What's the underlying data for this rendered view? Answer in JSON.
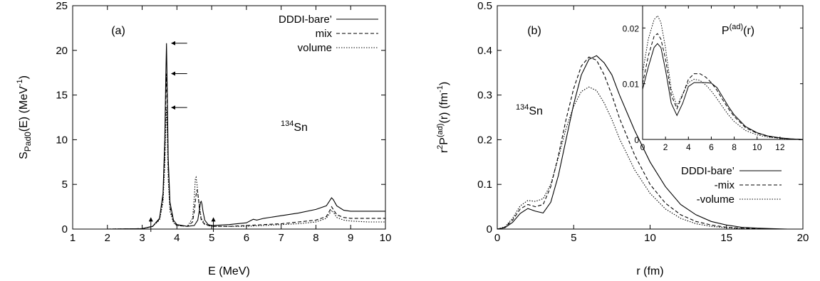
{
  "chart_data": [
    {
      "type": "line",
      "panel_label": "(a)",
      "xlabel": "E (MeV)",
      "ylabel_main": "S",
      "ylabel_sub": "Pad0",
      "ylabel_rest": "(E) (MeV",
      "ylabel_sup": "-1",
      "ylabel_close": ")",
      "xlim": [
        1,
        10
      ],
      "ylim": [
        0,
        25
      ],
      "xticks": [
        1,
        2,
        3,
        4,
        5,
        6,
        7,
        8,
        9,
        10
      ],
      "yticks": [
        0,
        5,
        10,
        15,
        20,
        25
      ],
      "nucleus_sup": "134",
      "nucleus_text": "Sn",
      "legend_position": "top-right",
      "series": [
        {
          "name": "DDDI-bare’",
          "style": "solid",
          "x": [
            1.0,
            2.0,
            3.0,
            3.3,
            3.5,
            3.6,
            3.65,
            3.68,
            3.7,
            3.72,
            3.75,
            3.8,
            3.9,
            4.0,
            4.3,
            4.5,
            4.6,
            4.65,
            4.68,
            4.7,
            4.72,
            4.75,
            4.8,
            4.9,
            5.0,
            5.5,
            6.0,
            6.15,
            6.2,
            6.3,
            6.5,
            7.0,
            7.5,
            8.0,
            8.3,
            8.4,
            8.45,
            8.5,
            8.6,
            8.8,
            9.0,
            9.5,
            10.0
          ],
          "y": [
            0.0,
            0.0,
            0.05,
            0.3,
            1.2,
            4.0,
            10.0,
            17.0,
            20.8,
            16.0,
            8.0,
            3.0,
            1.0,
            0.5,
            0.3,
            0.4,
            1.0,
            2.2,
            3.0,
            3.1,
            2.8,
            2.0,
            1.0,
            0.5,
            0.4,
            0.5,
            0.7,
            1.0,
            1.1,
            1.0,
            1.2,
            1.5,
            1.8,
            2.2,
            2.6,
            3.2,
            3.5,
            3.3,
            2.6,
            2.1,
            2.0,
            2.0,
            2.0
          ]
        },
        {
          "name": "mix",
          "style": "dashed",
          "x": [
            1.0,
            2.0,
            3.0,
            3.3,
            3.5,
            3.6,
            3.65,
            3.68,
            3.7,
            3.72,
            3.75,
            3.8,
            3.9,
            4.0,
            4.3,
            4.45,
            4.5,
            4.55,
            4.58,
            4.6,
            4.62,
            4.65,
            4.7,
            4.8,
            5.0,
            5.5,
            6.0,
            6.5,
            7.0,
            7.5,
            8.0,
            8.3,
            8.4,
            8.45,
            8.5,
            8.6,
            8.8,
            9.0,
            9.5,
            10.0
          ],
          "y": [
            0.0,
            0.0,
            0.05,
            0.3,
            1.1,
            3.5,
            8.5,
            14.5,
            17.4,
            14.0,
            7.0,
            2.5,
            0.8,
            0.4,
            0.3,
            0.8,
            2.0,
            3.8,
            4.4,
            4.0,
            3.4,
            2.2,
            1.0,
            0.5,
            0.3,
            0.3,
            0.4,
            0.5,
            0.6,
            0.8,
            1.0,
            1.4,
            2.1,
            2.5,
            2.2,
            1.6,
            1.3,
            1.2,
            1.2,
            1.2
          ]
        },
        {
          "name": "volume",
          "style": "dotted",
          "x": [
            1.0,
            2.0,
            3.0,
            3.3,
            3.5,
            3.6,
            3.65,
            3.68,
            3.7,
            3.72,
            3.75,
            3.8,
            3.9,
            4.0,
            4.3,
            4.45,
            4.5,
            4.53,
            4.55,
            4.58,
            4.6,
            4.65,
            4.7,
            4.8,
            5.0,
            5.5,
            6.0,
            6.5,
            7.0,
            7.5,
            8.0,
            8.3,
            8.4,
            8.45,
            8.5,
            8.6,
            8.8,
            9.0,
            9.5,
            10.0
          ],
          "y": [
            0.0,
            0.0,
            0.05,
            0.3,
            1.0,
            3.0,
            7.0,
            11.5,
            13.6,
            11.0,
            5.5,
            2.0,
            0.7,
            0.4,
            0.3,
            1.2,
            3.5,
            5.6,
            5.8,
            5.0,
            4.0,
            2.5,
            1.2,
            0.6,
            0.3,
            0.3,
            0.3,
            0.4,
            0.5,
            0.6,
            0.8,
            1.2,
            1.8,
            2.1,
            1.9,
            1.3,
            1.0,
            0.9,
            0.8,
            0.8
          ]
        }
      ],
      "horizontal_arrows": [
        {
          "x": 3.72,
          "y": 20.8
        },
        {
          "x": 3.72,
          "y": 17.4
        },
        {
          "x": 3.72,
          "y": 13.6
        }
      ],
      "vertical_arrows": [
        {
          "x": 3.25
        },
        {
          "x": 5.05
        }
      ]
    },
    {
      "type": "line",
      "panel_label": "(b)",
      "xlabel": "r (fm)",
      "ylabel_main": "r",
      "ylabel_sup1": "2",
      "ylabel_mid": "P",
      "ylabel_sup2": "(ad)",
      "ylabel_rest": "(r) (fm",
      "ylabel_sup3": "-1",
      "ylabel_close": ")",
      "xlim": [
        0,
        20
      ],
      "ylim": [
        0,
        0.5
      ],
      "xticks": [
        0,
        5,
        10,
        15,
        20
      ],
      "yticks": [
        0,
        0.1,
        0.2,
        0.3,
        0.4,
        0.5
      ],
      "ytick_labels": [
        "0",
        "0.1",
        "0.2",
        "0.3",
        "0.4",
        "0.5"
      ],
      "nucleus_sup": "134",
      "nucleus_text": "Sn",
      "legend_position": "bottom-right",
      "series": [
        {
          "name": "DDDI-bare’",
          "style": "solid",
          "x": [
            0,
            0.5,
            1.0,
            1.5,
            2.0,
            2.5,
            3.0,
            3.5,
            4.0,
            4.5,
            5.0,
            5.5,
            6.0,
            6.5,
            7.0,
            7.5,
            8.0,
            9.0,
            10.0,
            11.0,
            12.0,
            13.0,
            14.0,
            15.0,
            16.0,
            17.0,
            18.0,
            19.0,
            20.0
          ],
          "y": [
            0,
            0.003,
            0.015,
            0.035,
            0.046,
            0.04,
            0.036,
            0.06,
            0.12,
            0.2,
            0.28,
            0.345,
            0.38,
            0.388,
            0.372,
            0.345,
            0.3,
            0.22,
            0.15,
            0.095,
            0.055,
            0.032,
            0.017,
            0.009,
            0.004,
            0.002,
            0.001,
            0,
            0
          ]
        },
        {
          "name": "-mix",
          "style": "dashed",
          "x": [
            0,
            0.5,
            1.0,
            1.5,
            2.0,
            2.5,
            3.0,
            3.5,
            4.0,
            4.5,
            5.0,
            5.5,
            6.0,
            6.5,
            7.0,
            7.5,
            8.0,
            9.0,
            10.0,
            11.0,
            12.0,
            13.0,
            14.0,
            15.0,
            16.0,
            17.0,
            18.0,
            19.0,
            20.0
          ],
          "y": [
            0,
            0.004,
            0.02,
            0.045,
            0.055,
            0.05,
            0.055,
            0.095,
            0.165,
            0.245,
            0.315,
            0.365,
            0.385,
            0.378,
            0.345,
            0.3,
            0.248,
            0.165,
            0.1,
            0.058,
            0.032,
            0.017,
            0.009,
            0.004,
            0.002,
            0.001,
            0,
            0,
            0
          ]
        },
        {
          "name": "-volume",
          "style": "dotted",
          "x": [
            0,
            0.5,
            1.0,
            1.5,
            2.0,
            2.5,
            3.0,
            3.5,
            4.0,
            4.5,
            5.0,
            5.5,
            6.0,
            6.5,
            7.0,
            7.5,
            8.0,
            9.0,
            10.0,
            11.0,
            12.0,
            13.0,
            14.0,
            15.0,
            16.0,
            17.0,
            18.0,
            19.0,
            20.0
          ],
          "y": [
            0,
            0.005,
            0.024,
            0.052,
            0.064,
            0.062,
            0.068,
            0.1,
            0.16,
            0.225,
            0.275,
            0.308,
            0.318,
            0.31,
            0.282,
            0.245,
            0.202,
            0.132,
            0.08,
            0.045,
            0.024,
            0.012,
            0.006,
            0.003,
            0.001,
            0,
            0,
            0,
            0
          ]
        }
      ],
      "inset": {
        "title_main": "P",
        "title_sup": "(ad)",
        "title_rest": "(r)",
        "xlim": [
          0,
          14
        ],
        "ylim": [
          0,
          0.024
        ],
        "xticks": [
          0,
          2,
          4,
          6,
          8,
          10,
          12
        ],
        "yticks": [
          0,
          0.01,
          0.02
        ],
        "ytick_labels": [
          "0",
          "0.01",
          "0.02"
        ],
        "series": [
          {
            "style": "solid",
            "x": [
              0,
              0.5,
              1.0,
              1.3,
              1.6,
              2.0,
              2.5,
              3.0,
              3.5,
              4.0,
              4.5,
              5.0,
              5.5,
              6.0,
              6.5,
              7.0,
              7.5,
              8.0,
              9.0,
              10.0,
              11.0,
              12.0,
              13.0,
              14.0
            ],
            "y": [
              0.009,
              0.013,
              0.0165,
              0.0172,
              0.0165,
              0.0125,
              0.0065,
              0.0043,
              0.0065,
              0.0095,
              0.0102,
              0.0102,
              0.0102,
              0.0101,
              0.0093,
              0.0076,
              0.0059,
              0.0044,
              0.0023,
              0.0012,
              0.0006,
              0.0003,
              0.0001,
              0
            ]
          },
          {
            "style": "dashed",
            "x": [
              0,
              0.5,
              1.0,
              1.3,
              1.6,
              2.0,
              2.5,
              3.0,
              3.5,
              4.0,
              4.5,
              5.0,
              5.5,
              6.0,
              6.5,
              7.0,
              7.5,
              8.0,
              9.0,
              10.0,
              11.0,
              12.0,
              13.0,
              14.0
            ],
            "y": [
              0.01,
              0.015,
              0.0185,
              0.019,
              0.018,
              0.0145,
              0.008,
              0.0055,
              0.008,
              0.0108,
              0.0118,
              0.0118,
              0.0112,
              0.0102,
              0.0088,
              0.0071,
              0.0055,
              0.0041,
              0.0021,
              0.0011,
              0.0005,
              0.0002,
              0.0001,
              0
            ]
          },
          {
            "style": "dotted",
            "x": [
              0,
              0.5,
              1.0,
              1.3,
              1.6,
              2.0,
              2.5,
              3.0,
              3.5,
              4.0,
              4.5,
              5.0,
              5.5,
              6.0,
              6.5,
              7.0,
              7.5,
              8.0,
              9.0,
              10.0,
              11.0,
              12.0,
              13.0,
              14.0
            ],
            "y": [
              0.012,
              0.018,
              0.0215,
              0.0222,
              0.021,
              0.0165,
              0.009,
              0.006,
              0.0082,
              0.0102,
              0.0108,
              0.0106,
              0.0098,
              0.0087,
              0.0073,
              0.0058,
              0.0044,
              0.0032,
              0.0016,
              0.0008,
              0.0004,
              0.0002,
              0,
              0
            ]
          }
        ]
      }
    }
  ]
}
